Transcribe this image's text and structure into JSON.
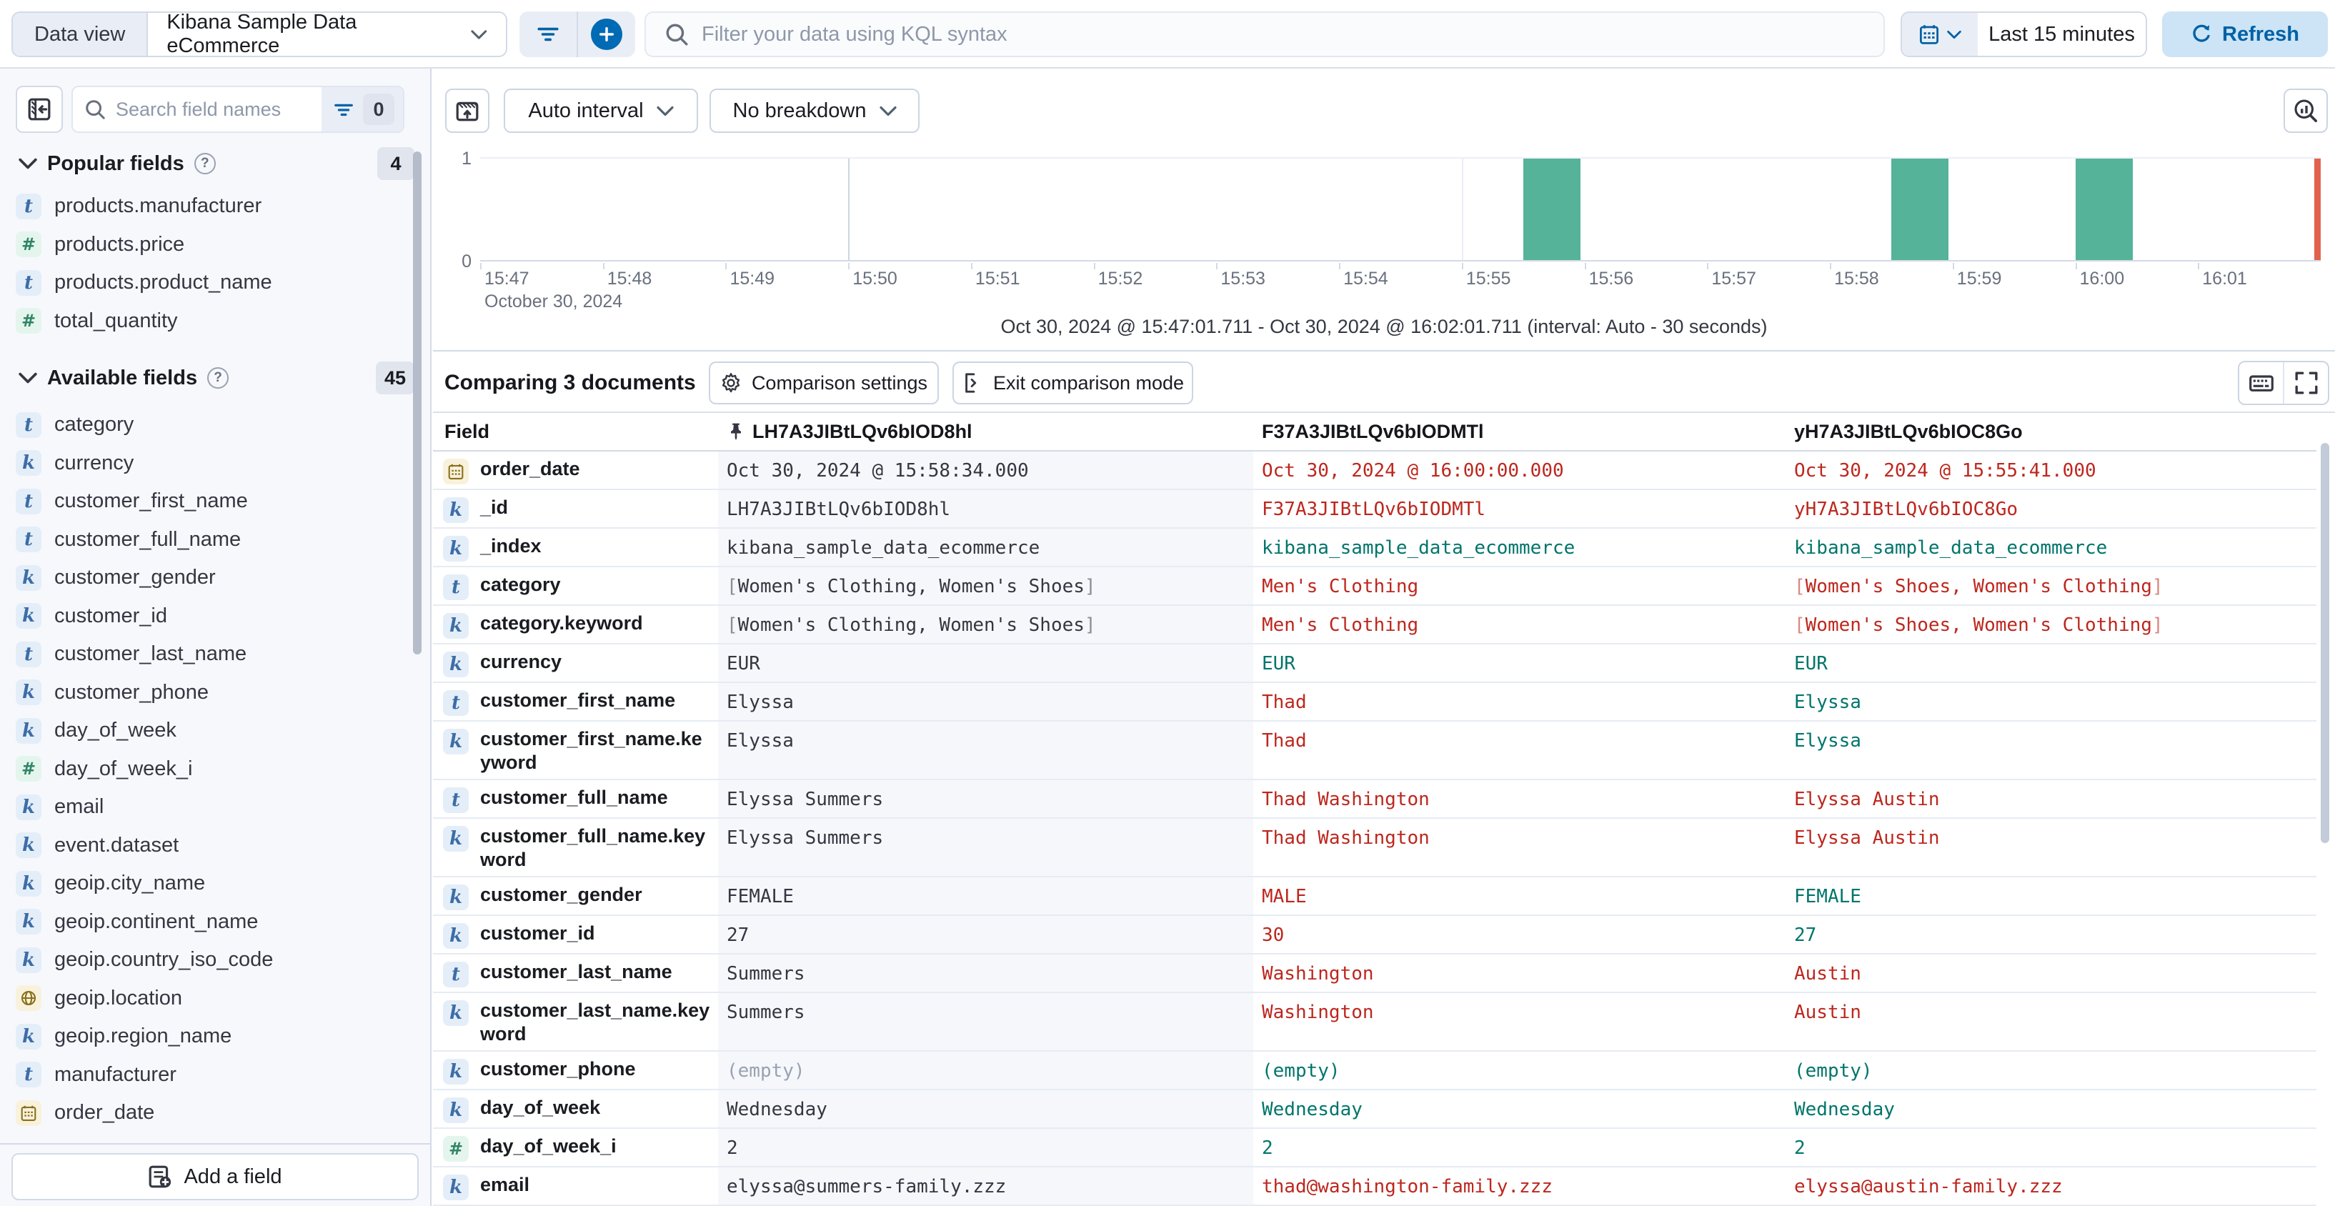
{
  "colors": {
    "accent_blue": "#006BB4",
    "refresh_text": "#0061A6",
    "bar_green": "#54B399",
    "time_marker_red": "#E0624C",
    "diff_red": "#BD271E",
    "match_teal": "#00756B",
    "empty_gray": "#98A2B3"
  },
  "topbar": {
    "data_view_label": "Data view",
    "data_view_value": "Kibana Sample Data eCommerce",
    "kql_placeholder": "Filter your data using KQL syntax",
    "time_range": "Last 15 minutes",
    "refresh_label": "Refresh"
  },
  "sidebar": {
    "search_placeholder": "Search field names",
    "filter_count": "0",
    "popular": {
      "label": "Popular fields",
      "count": "4",
      "items": [
        {
          "name": "products.manufacturer",
          "type": "t"
        },
        {
          "name": "products.price",
          "type": "num"
        },
        {
          "name": "products.product_name",
          "type": "t"
        },
        {
          "name": "total_quantity",
          "type": "num"
        }
      ]
    },
    "available": {
      "label": "Available fields",
      "count": "45",
      "items": [
        {
          "name": "category",
          "type": "t"
        },
        {
          "name": "currency",
          "type": "k"
        },
        {
          "name": "customer_first_name",
          "type": "t"
        },
        {
          "name": "customer_full_name",
          "type": "t"
        },
        {
          "name": "customer_gender",
          "type": "k"
        },
        {
          "name": "customer_id",
          "type": "k"
        },
        {
          "name": "customer_last_name",
          "type": "t"
        },
        {
          "name": "customer_phone",
          "type": "k"
        },
        {
          "name": "day_of_week",
          "type": "k"
        },
        {
          "name": "day_of_week_i",
          "type": "num"
        },
        {
          "name": "email",
          "type": "k"
        },
        {
          "name": "event.dataset",
          "type": "k"
        },
        {
          "name": "geoip.city_name",
          "type": "k"
        },
        {
          "name": "geoip.continent_name",
          "type": "k"
        },
        {
          "name": "geoip.country_iso_code",
          "type": "k"
        },
        {
          "name": "geoip.location",
          "type": "geo"
        },
        {
          "name": "geoip.region_name",
          "type": "k"
        },
        {
          "name": "manufacturer",
          "type": "t"
        },
        {
          "name": "order_date",
          "type": "date"
        }
      ]
    },
    "add_field_label": "Add a field"
  },
  "chart": {
    "interval_label": "Auto interval",
    "breakdown_label": "No breakdown",
    "caption": "Oct 30, 2024 @ 15:47:01.711 - Oct 30, 2024 @ 16:02:01.711 (interval: Auto - 30 seconds)"
  },
  "chart_data": {
    "type": "bar",
    "title": "",
    "x_date_label": "October 30, 2024",
    "x_domain": [
      "15:47:00",
      "16:02:00"
    ],
    "x_ticks": [
      "15:47",
      "15:48",
      "15:49",
      "15:50",
      "15:51",
      "15:52",
      "15:53",
      "15:54",
      "15:55",
      "15:56",
      "15:57",
      "15:58",
      "15:59",
      "16:00",
      "16:01"
    ],
    "ylim": [
      0,
      1
    ],
    "interval_seconds": 30,
    "bars": [
      {
        "x": "15:55:30",
        "y": 1
      },
      {
        "x": "15:58:30",
        "y": 1
      },
      {
        "x": "16:00:00",
        "y": 1
      }
    ],
    "gridlines": [
      {
        "x": "15:50:00",
        "weight": "major"
      },
      {
        "x": "15:55:00",
        "weight": "minor"
      },
      {
        "x": "16:00:00",
        "weight": "major"
      }
    ],
    "current_time_marker": "16:02:00",
    "bar_color": "#54B399",
    "marker_color": "#E0624C",
    "legend": "off",
    "grid": "off"
  },
  "comparison": {
    "title": "Comparing 3 documents",
    "settings_label": "Comparison settings",
    "exit_label": "Exit comparison mode"
  },
  "table": {
    "field_header": "Field",
    "doc_headers": [
      "LH7A3JIBtLQv6bIOD8hl",
      "F37A3JIBtLQv6bIODMTl",
      "yH7A3JIBtLQv6bIOC8Go"
    ],
    "rows": [
      {
        "field": "order_date",
        "icon": "date",
        "cells": [
          {
            "t": "Oct 30, 2024 @ 15:58:34.000",
            "s": "base"
          },
          {
            "t": "Oct 30, 2024 @ 16:00:00.000",
            "s": "diff"
          },
          {
            "t": "Oct 30, 2024 @ 15:55:41.000",
            "s": "diff"
          }
        ]
      },
      {
        "field": "_id",
        "icon": "k",
        "cells": [
          {
            "t": "LH7A3JIBtLQv6bIOD8hl",
            "s": "base"
          },
          {
            "t": "F37A3JIBtLQv6bIODMTl",
            "s": "diff"
          },
          {
            "t": "yH7A3JIBtLQv6bIOC8Go",
            "s": "diff"
          }
        ]
      },
      {
        "field": "_index",
        "icon": "k",
        "cells": [
          {
            "t": "kibana_sample_data_ecommerce",
            "s": "base"
          },
          {
            "t": "kibana_sample_data_ecommerce",
            "s": "same"
          },
          {
            "t": "kibana_sample_data_ecommerce",
            "s": "same"
          }
        ]
      },
      {
        "field": "category",
        "icon": "t",
        "cells": [
          {
            "t": "[Women's Clothing, Women's Shoes]",
            "s": "base"
          },
          {
            "t": "Men's Clothing",
            "s": "diff"
          },
          {
            "t": "[Women's Shoes, Women's Clothing]",
            "s": "diff"
          }
        ]
      },
      {
        "field": "category.keyword",
        "icon": "k",
        "cells": [
          {
            "t": "[Women's Clothing, Women's Shoes]",
            "s": "base"
          },
          {
            "t": "Men's Clothing",
            "s": "diff"
          },
          {
            "t": "[Women's Shoes, Women's Clothing]",
            "s": "diff"
          }
        ]
      },
      {
        "field": "currency",
        "icon": "k",
        "cells": [
          {
            "t": "EUR",
            "s": "base"
          },
          {
            "t": "EUR",
            "s": "same"
          },
          {
            "t": "EUR",
            "s": "same"
          }
        ]
      },
      {
        "field": "customer_first_name",
        "icon": "t",
        "cells": [
          {
            "t": "Elyssa",
            "s": "base"
          },
          {
            "t": "Thad",
            "s": "diff"
          },
          {
            "t": "Elyssa",
            "s": "same"
          }
        ]
      },
      {
        "field": "customer_first_name.keyword",
        "icon": "k",
        "cells": [
          {
            "t": "Elyssa",
            "s": "base"
          },
          {
            "t": "Thad",
            "s": "diff"
          },
          {
            "t": "Elyssa",
            "s": "same"
          }
        ]
      },
      {
        "field": "customer_full_name",
        "icon": "t",
        "cells": [
          {
            "t": "Elyssa Summers",
            "s": "base"
          },
          {
            "t": "Thad Washington",
            "s": "diff"
          },
          {
            "t": "Elyssa Austin",
            "s": "diff"
          }
        ]
      },
      {
        "field": "customer_full_name.keyword",
        "icon": "k",
        "cells": [
          {
            "t": "Elyssa Summers",
            "s": "base"
          },
          {
            "t": "Thad Washington",
            "s": "diff"
          },
          {
            "t": "Elyssa Austin",
            "s": "diff"
          }
        ]
      },
      {
        "field": "customer_gender",
        "icon": "k",
        "cells": [
          {
            "t": "FEMALE",
            "s": "base"
          },
          {
            "t": "MALE",
            "s": "diff"
          },
          {
            "t": "FEMALE",
            "s": "same"
          }
        ]
      },
      {
        "field": "customer_id",
        "icon": "k",
        "cells": [
          {
            "t": "27",
            "s": "base"
          },
          {
            "t": "30",
            "s": "diff"
          },
          {
            "t": "27",
            "s": "same"
          }
        ]
      },
      {
        "field": "customer_last_name",
        "icon": "t",
        "cells": [
          {
            "t": "Summers",
            "s": "base"
          },
          {
            "t": "Washington",
            "s": "diff"
          },
          {
            "t": "Austin",
            "s": "diff"
          }
        ]
      },
      {
        "field": "customer_last_name.keyword",
        "icon": "k",
        "cells": [
          {
            "t": "Summers",
            "s": "base"
          },
          {
            "t": "Washington",
            "s": "diff"
          },
          {
            "t": "Austin",
            "s": "diff"
          }
        ]
      },
      {
        "field": "customer_phone",
        "icon": "k",
        "cells": [
          {
            "t": "(empty)",
            "s": "empty"
          },
          {
            "t": "(empty)",
            "s": "same"
          },
          {
            "t": "(empty)",
            "s": "same"
          }
        ]
      },
      {
        "field": "day_of_week",
        "icon": "k",
        "cells": [
          {
            "t": "Wednesday",
            "s": "base"
          },
          {
            "t": "Wednesday",
            "s": "same"
          },
          {
            "t": "Wednesday",
            "s": "same"
          }
        ]
      },
      {
        "field": "day_of_week_i",
        "icon": "num",
        "cells": [
          {
            "t": "2",
            "s": "base"
          },
          {
            "t": "2",
            "s": "same"
          },
          {
            "t": "2",
            "s": "same"
          }
        ]
      },
      {
        "field": "email",
        "icon": "k",
        "cells": [
          {
            "t": "elyssa@summers-family.zzz",
            "s": "base"
          },
          {
            "t": "thad@washington-family.zzz",
            "s": "diff"
          },
          {
            "t": "elyssa@austin-family.zzz",
            "s": "diff"
          }
        ]
      }
    ]
  }
}
